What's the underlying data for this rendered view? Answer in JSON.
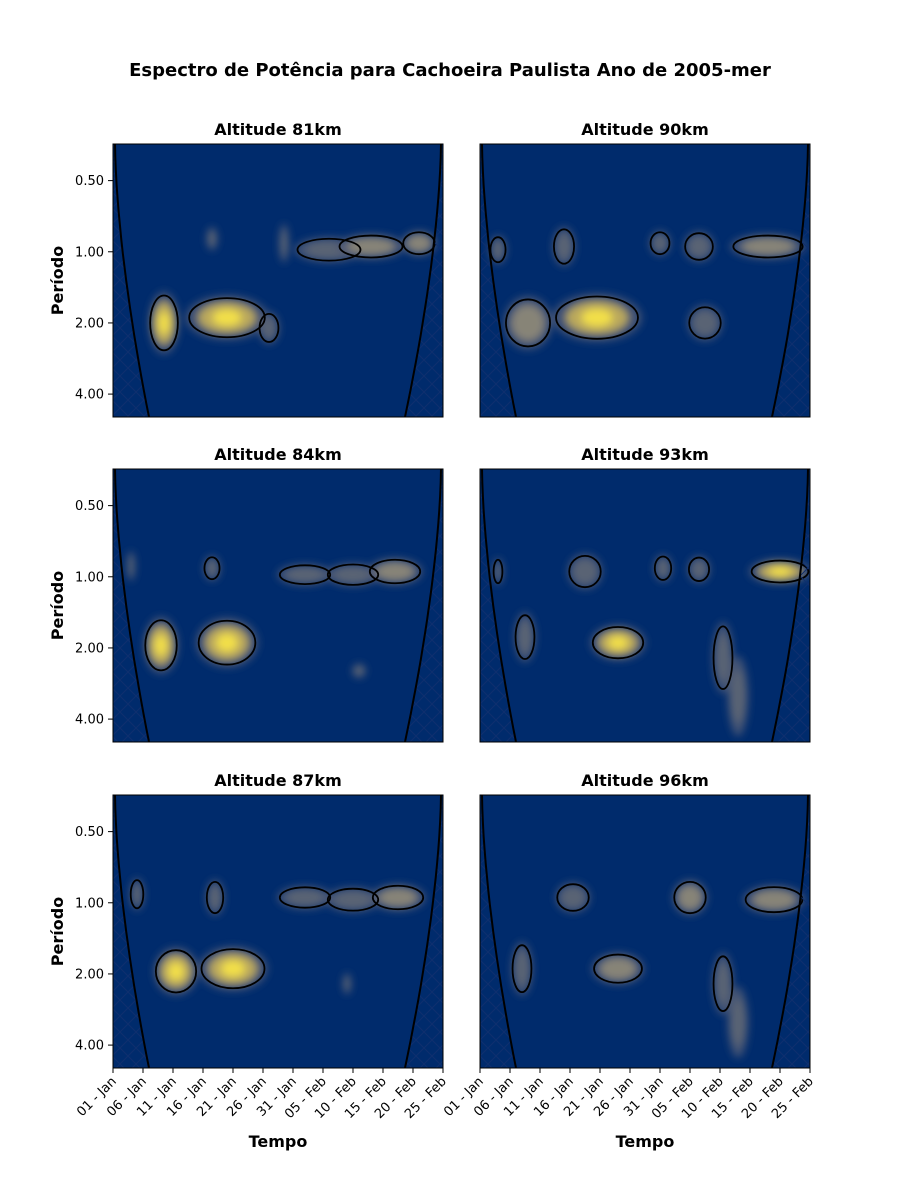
{
  "chart_data": {
    "type": "heatmap",
    "title": "Espectro de Potência para Cachoeira Paulista Ano de 2005-mer",
    "xlabel": "Tempo",
    "ylabel": "Período",
    "x_ticks": [
      "01 - Jan",
      "06 - Jan",
      "11 - Jan",
      "16 - Jan",
      "21 - Jan",
      "26 - Jan",
      "31 - Jan",
      "05 - Feb",
      "10 - Feb",
      "15 - Feb",
      "20 - Feb",
      "25 - Feb"
    ],
    "x_range_days": [
      0,
      55
    ],
    "y_ticks": [
      "0.50",
      "1.00",
      "2.00",
      "4.00"
    ],
    "y_scale": "log2",
    "y_range": [
      0.35,
      5.0
    ],
    "colormap": [
      "#00296a",
      "#5f6470",
      "#a19b79",
      "#f4e24a"
    ],
    "panels": [
      {
        "title": "Altitude 81km",
        "blobs": [
          [
            8.5,
            2.0,
            2.2,
            0.35,
            0.85
          ],
          [
            19.0,
            1.9,
            6.0,
            0.25,
            1.0
          ],
          [
            26.0,
            2.1,
            1.5,
            0.18,
            0.35
          ],
          [
            16.5,
            0.88,
            0.8,
            0.13,
            0.25
          ],
          [
            28.5,
            0.92,
            0.7,
            0.22,
            0.25
          ],
          [
            36.0,
            0.98,
            5.0,
            0.14,
            0.45
          ],
          [
            43.0,
            0.95,
            5.0,
            0.14,
            0.55
          ],
          [
            51.0,
            0.92,
            2.5,
            0.14,
            0.6
          ]
        ]
      },
      {
        "title": "Altitude 90km",
        "blobs": [
          [
            3.0,
            0.98,
            1.2,
            0.16,
            0.35
          ],
          [
            8.0,
            2.0,
            3.5,
            0.3,
            0.55
          ],
          [
            19.5,
            1.9,
            6.5,
            0.27,
            0.8
          ],
          [
            14.0,
            0.95,
            1.6,
            0.22,
            0.35
          ],
          [
            30.0,
            0.92,
            1.5,
            0.14,
            0.35
          ],
          [
            36.5,
            0.95,
            2.2,
            0.17,
            0.4
          ],
          [
            37.5,
            2.0,
            2.5,
            0.2,
            0.3
          ],
          [
            48.0,
            0.95,
            5.5,
            0.14,
            0.6
          ]
        ]
      },
      {
        "title": "Altitude 84km",
        "blobs": [
          [
            3.0,
            0.9,
            0.6,
            0.17,
            0.25
          ],
          [
            8.0,
            1.95,
            2.5,
            0.32,
            0.9
          ],
          [
            19.0,
            1.9,
            4.5,
            0.28,
            0.8
          ],
          [
            16.5,
            0.92,
            1.2,
            0.14,
            0.3
          ],
          [
            32.0,
            0.98,
            4.0,
            0.12,
            0.4
          ],
          [
            40.0,
            0.98,
            4.0,
            0.13,
            0.45
          ],
          [
            47.0,
            0.95,
            4.0,
            0.15,
            0.65
          ],
          [
            41.0,
            2.5,
            1.0,
            0.08,
            0.2
          ]
        ]
      },
      {
        "title": "Altitude 93km",
        "blobs": [
          [
            3.0,
            0.95,
            0.7,
            0.15,
            0.3
          ],
          [
            7.5,
            1.8,
            1.5,
            0.28,
            0.45
          ],
          [
            17.5,
            0.95,
            2.5,
            0.2,
            0.35
          ],
          [
            23.0,
            1.9,
            4.0,
            0.2,
            0.8
          ],
          [
            30.5,
            0.92,
            1.3,
            0.15,
            0.35
          ],
          [
            36.5,
            0.93,
            1.6,
            0.15,
            0.35
          ],
          [
            40.5,
            2.2,
            1.5,
            0.4,
            0.35
          ],
          [
            43.0,
            3.2,
            1.5,
            0.45,
            0.25
          ],
          [
            50.0,
            0.95,
            4.5,
            0.14,
            0.75
          ]
        ]
      },
      {
        "title": "Altitude 87km",
        "blobs": [
          [
            4.0,
            0.92,
            1.0,
            0.18,
            0.35
          ],
          [
            10.5,
            1.95,
            3.2,
            0.27,
            0.8
          ],
          [
            20.0,
            1.9,
            5.0,
            0.25,
            0.85
          ],
          [
            17.0,
            0.95,
            1.3,
            0.2,
            0.3
          ],
          [
            32.0,
            0.95,
            4.0,
            0.13,
            0.4
          ],
          [
            40.0,
            0.97,
            4.0,
            0.14,
            0.45
          ],
          [
            47.5,
            0.95,
            4.0,
            0.15,
            0.7
          ],
          [
            39.0,
            2.2,
            0.6,
            0.12,
            0.2
          ]
        ]
      },
      {
        "title": "Altitude 96km",
        "blobs": [
          [
            7.0,
            1.9,
            1.5,
            0.3,
            0.45
          ],
          [
            15.5,
            0.95,
            2.5,
            0.17,
            0.35
          ],
          [
            23.0,
            1.9,
            3.8,
            0.18,
            0.7
          ],
          [
            35.0,
            0.95,
            2.5,
            0.2,
            0.55
          ],
          [
            40.5,
            2.2,
            1.5,
            0.35,
            0.4
          ],
          [
            43.0,
            3.2,
            1.5,
            0.4,
            0.2
          ],
          [
            49.0,
            0.97,
            4.5,
            0.16,
            0.7
          ]
        ]
      }
    ]
  }
}
